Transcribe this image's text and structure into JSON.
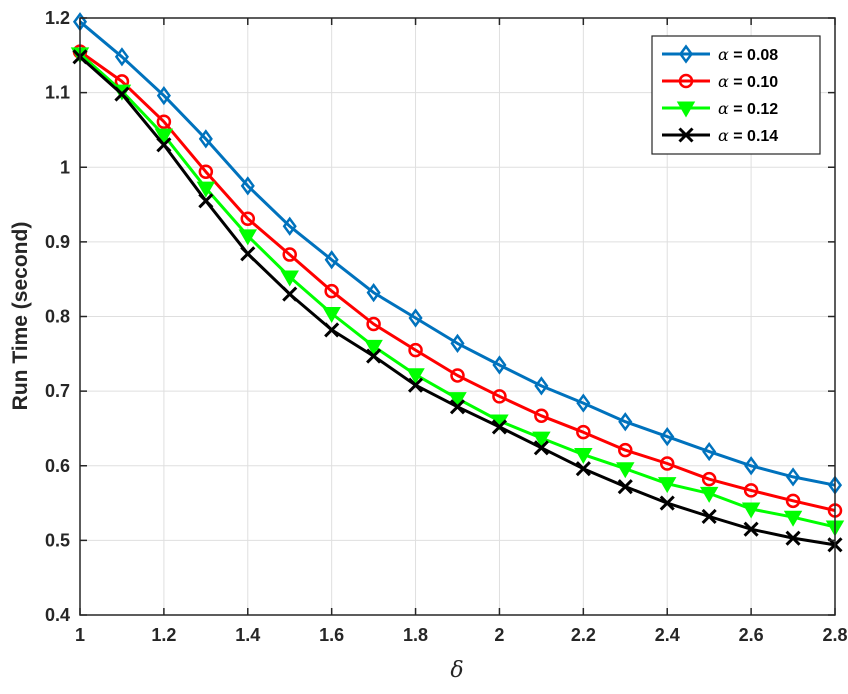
{
  "chart_data": {
    "type": "line",
    "title": "",
    "xlabel": "δ",
    "ylabel": "Run Time (second)",
    "xlim": [
      1,
      2.8
    ],
    "ylim": [
      0.4,
      1.2
    ],
    "xticks": [
      "1",
      "1.2",
      "1.4",
      "1.6",
      "1.8",
      "2",
      "2.2",
      "2.4",
      "2.6",
      "2.8"
    ],
    "yticks": [
      "0.4",
      "0.5",
      "0.6",
      "0.7",
      "0.8",
      "0.9",
      "1",
      "1.1",
      "1.2"
    ],
    "grid": true,
    "legend_position": "top-right",
    "x": [
      1,
      1.1,
      1.2,
      1.3,
      1.4,
      1.5,
      1.6,
      1.7,
      1.8,
      1.9,
      2,
      2.1,
      2.2,
      2.3,
      2.4,
      2.5,
      2.6,
      2.7,
      2.8
    ],
    "series": [
      {
        "name": "= 0.08",
        "symbol": "α",
        "color": "#0072BD",
        "marker": "diamond",
        "values": [
          1.195,
          1.148,
          1.096,
          1.038,
          0.975,
          0.921,
          0.876,
          0.832,
          0.798,
          0.764,
          0.735,
          0.707,
          0.684,
          0.659,
          0.639,
          0.619,
          0.6,
          0.585,
          0.574
        ]
      },
      {
        "name": "= 0.10",
        "symbol": "α",
        "color": "#FF0000",
        "marker": "circle",
        "values": [
          1.155,
          1.115,
          1.061,
          0.994,
          0.931,
          0.883,
          0.834,
          0.79,
          0.755,
          0.721,
          0.693,
          0.667,
          0.645,
          0.621,
          0.603,
          0.582,
          0.567,
          0.553,
          0.54
        ]
      },
      {
        "name": "= 0.12",
        "symbol": "α",
        "color": "#00FF00",
        "marker": "triangle-down",
        "values": [
          1.152,
          1.102,
          1.043,
          0.972,
          0.908,
          0.853,
          0.804,
          0.76,
          0.722,
          0.69,
          0.66,
          0.637,
          0.615,
          0.596,
          0.576,
          0.563,
          0.542,
          0.531,
          0.518
        ]
      },
      {
        "name": "= 0.14",
        "symbol": "α",
        "color": "#000000",
        "marker": "x",
        "values": [
          1.148,
          1.098,
          1.03,
          0.955,
          0.884,
          0.83,
          0.782,
          0.747,
          0.708,
          0.679,
          0.652,
          0.624,
          0.596,
          0.572,
          0.55,
          0.532,
          0.515,
          0.503,
          0.494
        ]
      }
    ]
  }
}
